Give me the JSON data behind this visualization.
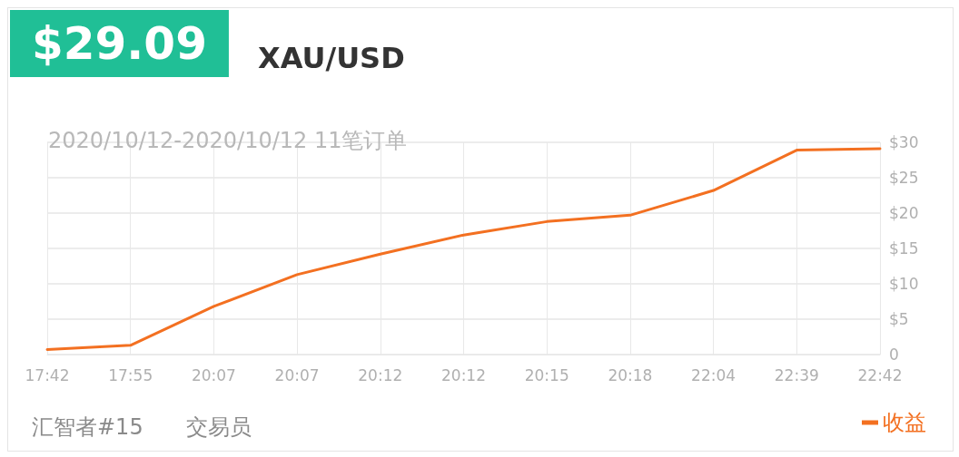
{
  "chart_data": {
    "type": "line",
    "title": "$29.09",
    "subtitle": "XAU/USD",
    "annotations": [
      "2020/10/12-2020/10/12 11笔订单",
      "汇智者#15",
      "交易员"
    ],
    "categories": [
      "17:42",
      "17:55",
      "20:07",
      "20:07",
      "20:12",
      "20:12",
      "20:15",
      "20:18",
      "22:04",
      "22:39",
      "22:42"
    ],
    "series": [
      {
        "name": "收益",
        "color": "#f37021",
        "values": [
          0.7,
          1.3,
          6.8,
          11.3,
          14.2,
          16.9,
          18.8,
          19.7,
          23.2,
          28.9,
          29.09
        ]
      }
    ],
    "ylim": [
      0,
      30
    ],
    "yticks": [
      0,
      {
        "value": 5,
        "label": "$5"
      },
      {
        "value": 10,
        "label": "$10"
      },
      {
        "value": 15,
        "label": "$15"
      },
      {
        "value": 20,
        "label": "$20"
      },
      {
        "value": 25,
        "label": "$25"
      },
      {
        "value": 30,
        "label": "$30"
      }
    ],
    "grid": true,
    "legend": "bottom right",
    "marker": "none",
    "line_style": "solid"
  }
}
